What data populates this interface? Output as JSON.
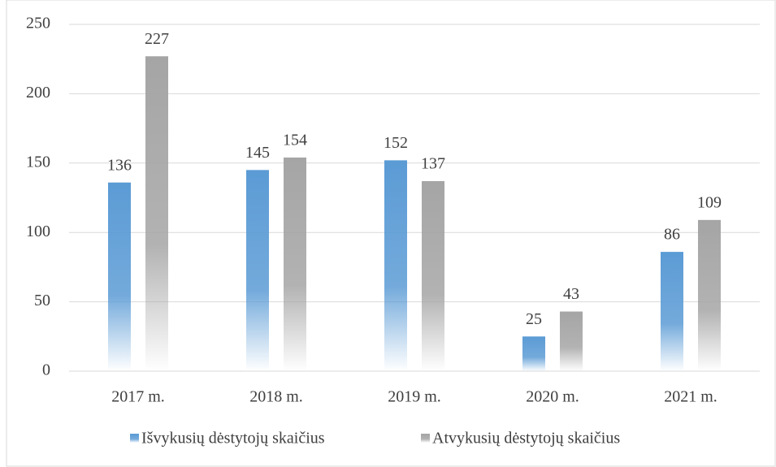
{
  "chart_data": {
    "type": "bar",
    "categories": [
      "2017 m.",
      "2018 m.",
      "2019 m.",
      "2020 m.",
      "2021 m."
    ],
    "series": [
      {
        "name": "Išvykusių dėstytojų skaičius",
        "color": "#5b9bd5",
        "values": [
          136,
          145,
          152,
          25,
          86
        ]
      },
      {
        "name": "Atvykusių dėstytojų skaičius",
        "color": "#a5a5a5",
        "values": [
          227,
          154,
          137,
          43,
          109
        ]
      }
    ],
    "ylim": [
      0,
      250
    ],
    "yticks": [
      0,
      50,
      100,
      150,
      200,
      250
    ],
    "grid": true,
    "legend": "bottom"
  }
}
